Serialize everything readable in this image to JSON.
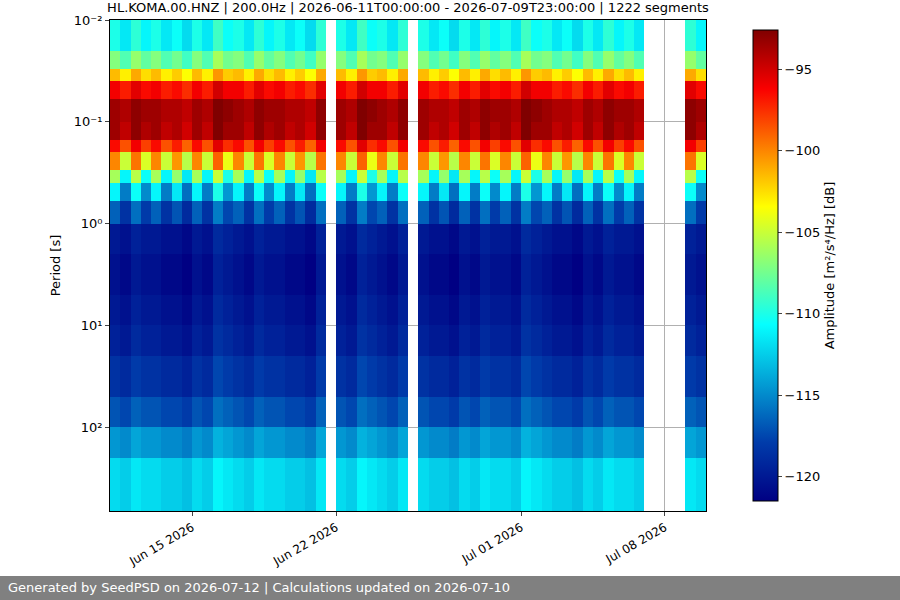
{
  "chart_data": {
    "type": "heatmap",
    "title": "HL.KOMA.00.HNZ | 200.0Hz | 2026-06-11T00:00:00 - 2026-07-09T23:00:00 | 1222 segments",
    "y_label": "Period [s]",
    "colorbar_label": "Amplitude [m²/s⁴/Hz] [dB]",
    "footer": "Generated by SeedPSD on 2026-07-12 | Calculations updated on 2026-07-10",
    "log": "y",
    "grid": true,
    "color": "Jet",
    "xlim": [
      "2026-06-11 00:00",
      "2026-07-10 00:00"
    ],
    "xticks": [
      {
        "value": "2026-06-15",
        "label": "Jun 15 2026"
      },
      {
        "value": "2026-06-22",
        "label": "Jun 22 2026"
      },
      {
        "value": "2026-07-01",
        "label": "Jul 01 2026"
      },
      {
        "value": "2026-07-08",
        "label": "Jul 08 2026"
      }
    ],
    "ylim": [
      665,
      0.01
    ],
    "yticks": [
      {
        "value": 0.01,
        "label": "10⁻²"
      },
      {
        "value": 0.1,
        "label": "10⁻¹"
      },
      {
        "value": 1,
        "label": "10⁰"
      },
      {
        "value": 10,
        "label": "10¹"
      },
      {
        "value": 100,
        "label": "10²"
      }
    ],
    "zlim": [
      -121.5,
      -92.6
    ],
    "zticks": [
      {
        "value": -120,
        "label": "−120"
      },
      {
        "value": -115,
        "label": "−115"
      },
      {
        "value": -110,
        "label": "−110"
      },
      {
        "value": -105,
        "label": "−105"
      },
      {
        "value": -100,
        "label": "−100"
      },
      {
        "value": -95,
        "label": "−95"
      }
    ],
    "x_edges": [
      "2026-06-11 00:00",
      "2026-06-11 12:00",
      "2026-06-12 00:00",
      "2026-06-12 12:00",
      "2026-06-13 00:00",
      "2026-06-13 12:00",
      "2026-06-14 00:00",
      "2026-06-14 12:00",
      "2026-06-15 00:00",
      "2026-06-15 12:00",
      "2026-06-16 00:00",
      "2026-06-16 12:00",
      "2026-06-17 00:00",
      "2026-06-17 12:00",
      "2026-06-18 00:00",
      "2026-06-18 12:00",
      "2026-06-19 00:00",
      "2026-06-19 12:00",
      "2026-06-20 00:00",
      "2026-06-20 12:00",
      "2026-06-21 00:00",
      "2026-06-21 12:00",
      "2026-06-22 00:00",
      "2026-06-22 12:00",
      "2026-06-23 00:00",
      "2026-06-23 12:00",
      "2026-06-24 00:00",
      "2026-06-24 12:00",
      "2026-06-25 00:00",
      "2026-06-25 12:00",
      "2026-06-26 00:00",
      "2026-06-26 12:00",
      "2026-06-27 00:00",
      "2026-06-27 12:00",
      "2026-06-28 00:00",
      "2026-06-28 12:00",
      "2026-06-29 00:00",
      "2026-06-29 12:00",
      "2026-06-30 00:00",
      "2026-06-30 12:00",
      "2026-07-01 00:00",
      "2026-07-01 12:00",
      "2026-07-02 00:00",
      "2026-07-02 12:00",
      "2026-07-03 00:00",
      "2026-07-03 12:00",
      "2026-07-04 00:00",
      "2026-07-04 12:00",
      "2026-07-05 00:00",
      "2026-07-05 12:00",
      "2026-07-06 00:00",
      "2026-07-06 12:00",
      "2026-07-07 00:00",
      "2026-07-07 12:00",
      "2026-07-08 00:00",
      "2026-07-08 12:00",
      "2026-07-09 00:00",
      "2026-07-09 12:00",
      "2026-07-10 00:00"
    ],
    "y_edges": [
      0.01,
      0.02,
      0.03,
      0.04,
      0.06,
      0.1,
      0.15,
      0.2,
      0.3,
      0.4,
      0.6,
      1,
      2,
      5,
      10,
      20,
      50,
      100,
      200,
      665
    ],
    "cells": [
      [
        -110,
        -111.5,
        -109.5,
        -111,
        -110,
        -111.5,
        -110.5,
        -112,
        -110,
        -111.5,
        -109,
        -110.5,
        -110,
        -111.5,
        -109.5,
        -111,
        -110,
        -111.5,
        -110.5,
        -112,
        -109.5,
        null,
        -110,
        -111.5,
        -109,
        -110.5,
        -110,
        -111.5,
        -109.5,
        null,
        -110,
        -111.5,
        -110.5,
        -112,
        -110,
        -111.5,
        -109.5,
        -111,
        -110,
        -111.5,
        -109,
        -110.5,
        -110,
        -111.5,
        -110.5,
        -112,
        -110,
        -111.5,
        -109.5,
        -111,
        -110,
        -111.5,
        null,
        null,
        null,
        null,
        -109.5,
        -111
      ],
      [
        -107,
        -108.5,
        -106.5,
        -108,
        -107,
        -108.5,
        -107.5,
        -109,
        -107,
        -108.5,
        -106,
        -107.5,
        -107,
        -108.5,
        -106.5,
        -108,
        -107,
        -108.5,
        -107.5,
        -109,
        -106.5,
        null,
        -107,
        -108.5,
        -106,
        -107.5,
        -107,
        -108.5,
        -106.5,
        null,
        -107,
        -108.5,
        -107.5,
        -109,
        -107,
        -108.5,
        -106.5,
        -108,
        -107,
        -108.5,
        -106,
        -107.5,
        -107,
        -108.5,
        -107.5,
        -109,
        -107,
        -108.5,
        -106.5,
        -108,
        -107,
        -108.5,
        null,
        null,
        null,
        null,
        -106.5,
        -108
      ],
      [
        -101.5,
        -103,
        -101,
        -102.5,
        -101.5,
        -103,
        -102,
        -103.5,
        -101.5,
        -103,
        -100.5,
        -102,
        -101.5,
        -103,
        -101,
        -102.5,
        -101.5,
        -103,
        -102,
        -103.5,
        -101,
        null,
        -101.5,
        -103,
        -100.5,
        -102,
        -101.5,
        -103,
        -101,
        null,
        -101.5,
        -103,
        -102,
        -103.5,
        -101.5,
        -103,
        -101,
        -102.5,
        -101.5,
        -103,
        -100.5,
        -102,
        -101.5,
        -103,
        -102,
        -103.5,
        -101.5,
        -103,
        -101,
        -102.5,
        -101.5,
        -103,
        null,
        null,
        null,
        null,
        -101,
        -102.5
      ],
      [
        -96,
        -97,
        -95.5,
        -96.5,
        -96,
        -97,
        -96.5,
        -97.5,
        -96,
        -97,
        -95,
        -96,
        -96,
        -97,
        -95.5,
        -96.5,
        -96,
        -97,
        -96.5,
        -97.5,
        -95.5,
        null,
        -96,
        -97,
        -95,
        -96,
        -96,
        -97,
        -95.5,
        null,
        -96,
        -97,
        -96.5,
        -97.5,
        -96,
        -97,
        -95.5,
        -96.5,
        -96,
        -97,
        -95,
        -96,
        -96,
        -97,
        -96.5,
        -97.5,
        -96,
        -97,
        -95.5,
        -96.5,
        -96,
        -97,
        null,
        null,
        null,
        null,
        -95.5,
        -96.5
      ],
      [
        -93.5,
        -94,
        -93,
        -93.5,
        -93.5,
        -94,
        -94,
        -94.5,
        -93.5,
        -94,
        -92.5,
        -93,
        -93.5,
        -94,
        -93,
        -93.5,
        -93.5,
        -94,
        -94,
        -94.5,
        -93,
        null,
        -93.5,
        -94,
        -92.5,
        -93,
        -93.5,
        -94,
        -93,
        null,
        -93.5,
        -94,
        -94,
        -94.5,
        -93.5,
        -94,
        -93,
        -93.5,
        -93.5,
        -94,
        -92.5,
        -93,
        -93.5,
        -94,
        -94,
        -94.5,
        -93.5,
        -94,
        -93,
        -93.5,
        -93.5,
        -94,
        null,
        null,
        null,
        null,
        -93,
        -93.5
      ],
      [
        -93.5,
        -94.5,
        -93,
        -94,
        -93.5,
        -94.5,
        -94,
        -95,
        -93.5,
        -94.5,
        -92.5,
        -93.5,
        -93.5,
        -94.5,
        -93,
        -94,
        -93.5,
        -94.5,
        -94,
        -95,
        -93,
        null,
        -93.5,
        -94.5,
        -92.5,
        -93.5,
        -93.5,
        -94.5,
        -93,
        null,
        -93.5,
        -94.5,
        -94,
        -95,
        -93.5,
        -94.5,
        -93,
        -94,
        -93.5,
        -94.5,
        -92.5,
        -93.5,
        -93.5,
        -94.5,
        -94,
        -95,
        -93.5,
        -94.5,
        -93,
        -94,
        -93.5,
        -94.5,
        null,
        null,
        null,
        null,
        -93,
        -94
      ],
      [
        -96.5,
        -98.5,
        -96,
        -98,
        -96.5,
        -98.5,
        -97,
        -99,
        -96.5,
        -98.5,
        -95.5,
        -97.5,
        -96.5,
        -98.5,
        -96,
        -98,
        -96.5,
        -98.5,
        -97,
        -99,
        -96,
        null,
        -96.5,
        -98.5,
        -95.5,
        -97.5,
        -96.5,
        -98.5,
        -96,
        null,
        -96.5,
        -98.5,
        -97,
        -99,
        -96.5,
        -98.5,
        -96,
        -98,
        -96.5,
        -98.5,
        -95.5,
        -97.5,
        -96.5,
        -98.5,
        -97,
        -99,
        -96.5,
        -98.5,
        -96,
        -98,
        -96.5,
        -98.5,
        null,
        null,
        null,
        null,
        -96,
        -98
      ],
      [
        -100,
        -105,
        -99.5,
        -104.5,
        -100,
        -105,
        -100.5,
        -105.5,
        -100,
        -105,
        -99,
        -104,
        -100,
        -105,
        -99.5,
        -104.5,
        -100,
        -105,
        -100.5,
        -105.5,
        -99.5,
        null,
        -100,
        -105,
        -99,
        -104,
        -100,
        -105,
        -99.5,
        null,
        -100,
        -105,
        -100.5,
        -105.5,
        -100,
        -105,
        -99.5,
        -104.5,
        -100,
        -105,
        -99,
        -104,
        -100,
        -105,
        -100.5,
        -105.5,
        -100,
        -105,
        -99.5,
        -104.5,
        -100,
        -105,
        null,
        null,
        null,
        null,
        -99.5,
        -104.5
      ],
      [
        -106,
        -111,
        -105.5,
        -110.5,
        -106,
        -111,
        -106.5,
        -111.5,
        -106,
        -111,
        -105,
        -110,
        -106,
        -111,
        -105.5,
        -110.5,
        -106,
        -111,
        -106.5,
        -111.5,
        -105.5,
        null,
        -106,
        -111,
        -105,
        -110,
        -106,
        -111,
        -105.5,
        null,
        -106,
        -111,
        -106.5,
        -111.5,
        -106,
        -111,
        -105.5,
        -110.5,
        -106,
        -111,
        -105,
        -110,
        -106,
        -111,
        -106.5,
        -111.5,
        -106,
        -111,
        -105.5,
        -110.5,
        -106,
        -111,
        null,
        null,
        null,
        null,
        -105.5,
        -110.5
      ],
      [
        -111,
        -115.5,
        -110.5,
        -115,
        -111,
        -115.5,
        -111.5,
        -116,
        -111,
        -115.5,
        -110,
        -114.5,
        -111,
        -115.5,
        -110.5,
        -115,
        -111,
        -115.5,
        -111.5,
        -116,
        -110.5,
        null,
        -111,
        -115.5,
        -110,
        -114.5,
        -111,
        -115.5,
        -110.5,
        null,
        -111,
        -115.5,
        -111.5,
        -116,
        -111,
        -115.5,
        -110.5,
        -115,
        -111,
        -115.5,
        -110,
        -114.5,
        -111,
        -115.5,
        -111.5,
        -116,
        -111,
        -115.5,
        -110.5,
        -115,
        -111,
        -115.5,
        null,
        null,
        null,
        null,
        -110.5,
        -115
      ],
      [
        -116.5,
        -118.5,
        -116,
        -118,
        -116.5,
        -118.5,
        -117,
        -119,
        -116.5,
        -118.5,
        -115.5,
        -117.5,
        -116.5,
        -118.5,
        -116,
        -118,
        -116.5,
        -118.5,
        -117,
        -119,
        -116,
        null,
        -116.5,
        -118.5,
        -115.5,
        -117.5,
        -116.5,
        -118.5,
        -116,
        null,
        -116.5,
        -118.5,
        -117,
        -119,
        -116.5,
        -118.5,
        -116,
        -118,
        -116.5,
        -118.5,
        -115.5,
        -117.5,
        -116.5,
        -118.5,
        -117,
        -119,
        -116.5,
        -118.5,
        -116,
        -118,
        -116.5,
        -118.5,
        null,
        null,
        null,
        null,
        -116,
        -118
      ],
      [
        -120,
        -120.5,
        -119.5,
        -120,
        -120,
        -120.5,
        -120.5,
        -121,
        -120,
        -120.5,
        -119,
        -119.5,
        -120,
        -120.5,
        -119.5,
        -120,
        -120,
        -120.5,
        -120.5,
        -121,
        -119.5,
        null,
        -120,
        -120.5,
        -119,
        -119.5,
        -120,
        -120.5,
        -119.5,
        null,
        -120,
        -120.5,
        -120.5,
        -121,
        -120,
        -120.5,
        -119.5,
        -120,
        -120,
        -120.5,
        -119,
        -119.5,
        -120,
        -120.5,
        -120.5,
        -121,
        -120,
        -120.5,
        -119.5,
        -120,
        -120,
        -120.5,
        null,
        null,
        null,
        null,
        -119.5,
        -120
      ],
      [
        -120.5,
        -121,
        -120,
        -120.5,
        -120.5,
        -121,
        -121,
        -121.5,
        -120.5,
        -121,
        -119.5,
        -120,
        -120.5,
        -121,
        -120,
        -120.5,
        -120.5,
        -121,
        -121,
        -121.5,
        -120,
        null,
        -120.5,
        -121,
        -119.5,
        -120,
        -120.5,
        -121,
        -120,
        null,
        -120.5,
        -121,
        -121,
        -121.5,
        -120.5,
        -121,
        -120,
        -120.5,
        -120.5,
        -121,
        -119.5,
        -120,
        -120.5,
        -121,
        -121,
        -121.5,
        -120.5,
        -121,
        -120,
        -120.5,
        -120.5,
        -121,
        null,
        null,
        null,
        null,
        -120,
        -120.5
      ],
      [
        -120,
        -120.5,
        -119.5,
        -120,
        -120,
        -120.5,
        -120.5,
        -121,
        -120,
        -120.5,
        -119,
        -119.5,
        -120,
        -120.5,
        -119.5,
        -120,
        -120,
        -120.5,
        -120.5,
        -121,
        -119.5,
        null,
        -120,
        -120.5,
        -119,
        -119.5,
        -120,
        -120.5,
        -119.5,
        null,
        -120,
        -120.5,
        -120.5,
        -121,
        -120,
        -120.5,
        -119.5,
        -120,
        -120,
        -120.5,
        -119,
        -119.5,
        -120,
        -120.5,
        -120.5,
        -121,
        -120,
        -120.5,
        -119.5,
        -120,
        -120,
        -120.5,
        null,
        null,
        null,
        null,
        -119.5,
        -120
      ],
      [
        -119.5,
        -120,
        -119,
        -119.5,
        -119.5,
        -120,
        -120,
        -120.5,
        -119.5,
        -120,
        -118.5,
        -119,
        -119.5,
        -120,
        -119,
        -119.5,
        -119.5,
        -120,
        -120,
        -120.5,
        -119,
        null,
        -119.5,
        -120,
        -118.5,
        -119,
        -119.5,
        -120,
        -119,
        null,
        -119.5,
        -120,
        -120,
        -120.5,
        -119.5,
        -120,
        -119,
        -119.5,
        -119.5,
        -120,
        -118.5,
        -119,
        -119.5,
        -120,
        -120,
        -120.5,
        -119.5,
        -120,
        -119,
        -119.5,
        -119.5,
        -120,
        null,
        null,
        null,
        null,
        -119,
        -119.5
      ],
      [
        -118.5,
        -119,
        -118,
        -118.5,
        -118.5,
        -119,
        -119,
        -119.5,
        -118.5,
        -119,
        -117.5,
        -118,
        -118.5,
        -119,
        -118,
        -118.5,
        -118.5,
        -119,
        -119,
        -119.5,
        -118,
        null,
        -118.5,
        -119,
        -117.5,
        -118,
        -118.5,
        -119,
        -118,
        null,
        -118.5,
        -119,
        -119,
        -119.5,
        -118.5,
        -119,
        -118,
        -118.5,
        -118.5,
        -119,
        -117.5,
        -118,
        -118.5,
        -119,
        -119,
        -119.5,
        -118.5,
        -119,
        -118,
        -118.5,
        -118.5,
        -119,
        null,
        null,
        null,
        null,
        -118,
        -118.5
      ],
      [
        -117,
        -117.5,
        -116.5,
        -117,
        -117,
        -117.5,
        -117.5,
        -118,
        -117,
        -117.5,
        -116,
        -116.5,
        -117,
        -117.5,
        -116.5,
        -117,
        -117,
        -117.5,
        -117.5,
        -118,
        -116.5,
        null,
        -117,
        -117.5,
        -116,
        -116.5,
        -117,
        -117.5,
        -116.5,
        null,
        -117,
        -117.5,
        -117.5,
        -118,
        -117,
        -117.5,
        -116.5,
        -117,
        -117,
        -117.5,
        -116,
        -116.5,
        -117,
        -117.5,
        -117.5,
        -118,
        -117,
        -117.5,
        -116.5,
        -117,
        -117,
        -117.5,
        null,
        null,
        null,
        null,
        -116.5,
        -117
      ],
      [
        -114.5,
        -115,
        -114,
        -114.5,
        -114.5,
        -115,
        -115,
        -115.5,
        -114.5,
        -115,
        -113.5,
        -114,
        -114.5,
        -115,
        -114,
        -114.5,
        -114.5,
        -115,
        -115,
        -115.5,
        -114,
        null,
        -114.5,
        -115,
        -113.5,
        -114,
        -114.5,
        -115,
        -114,
        null,
        -114.5,
        -115,
        -115,
        -115.5,
        -114.5,
        -115,
        -114,
        -114.5,
        -114.5,
        -115,
        -113.5,
        -114,
        -114.5,
        -115,
        -115,
        -115.5,
        -114.5,
        -115,
        -114,
        -114.5,
        -114.5,
        -115,
        null,
        null,
        null,
        null,
        -114,
        -114.5
      ],
      [
        -112,
        -112.5,
        -111.5,
        -112,
        -112,
        -112.5,
        -112.5,
        -113,
        -112,
        -112.5,
        -111,
        -111.5,
        -112,
        -112.5,
        -111.5,
        -112,
        -112,
        -112.5,
        -112.5,
        -113,
        -111.5,
        null,
        -112,
        -112.5,
        -111,
        -111.5,
        -112,
        -112.5,
        -111.5,
        null,
        -112,
        -112.5,
        -112.5,
        -113,
        -112,
        -112.5,
        -111.5,
        -112,
        -112,
        -112.5,
        -111,
        -111.5,
        -112,
        -112.5,
        -112.5,
        -113,
        -112,
        -112.5,
        -111.5,
        -112,
        -112,
        -112.5,
        null,
        null,
        null,
        null,
        -111.5,
        -112
      ]
    ]
  }
}
